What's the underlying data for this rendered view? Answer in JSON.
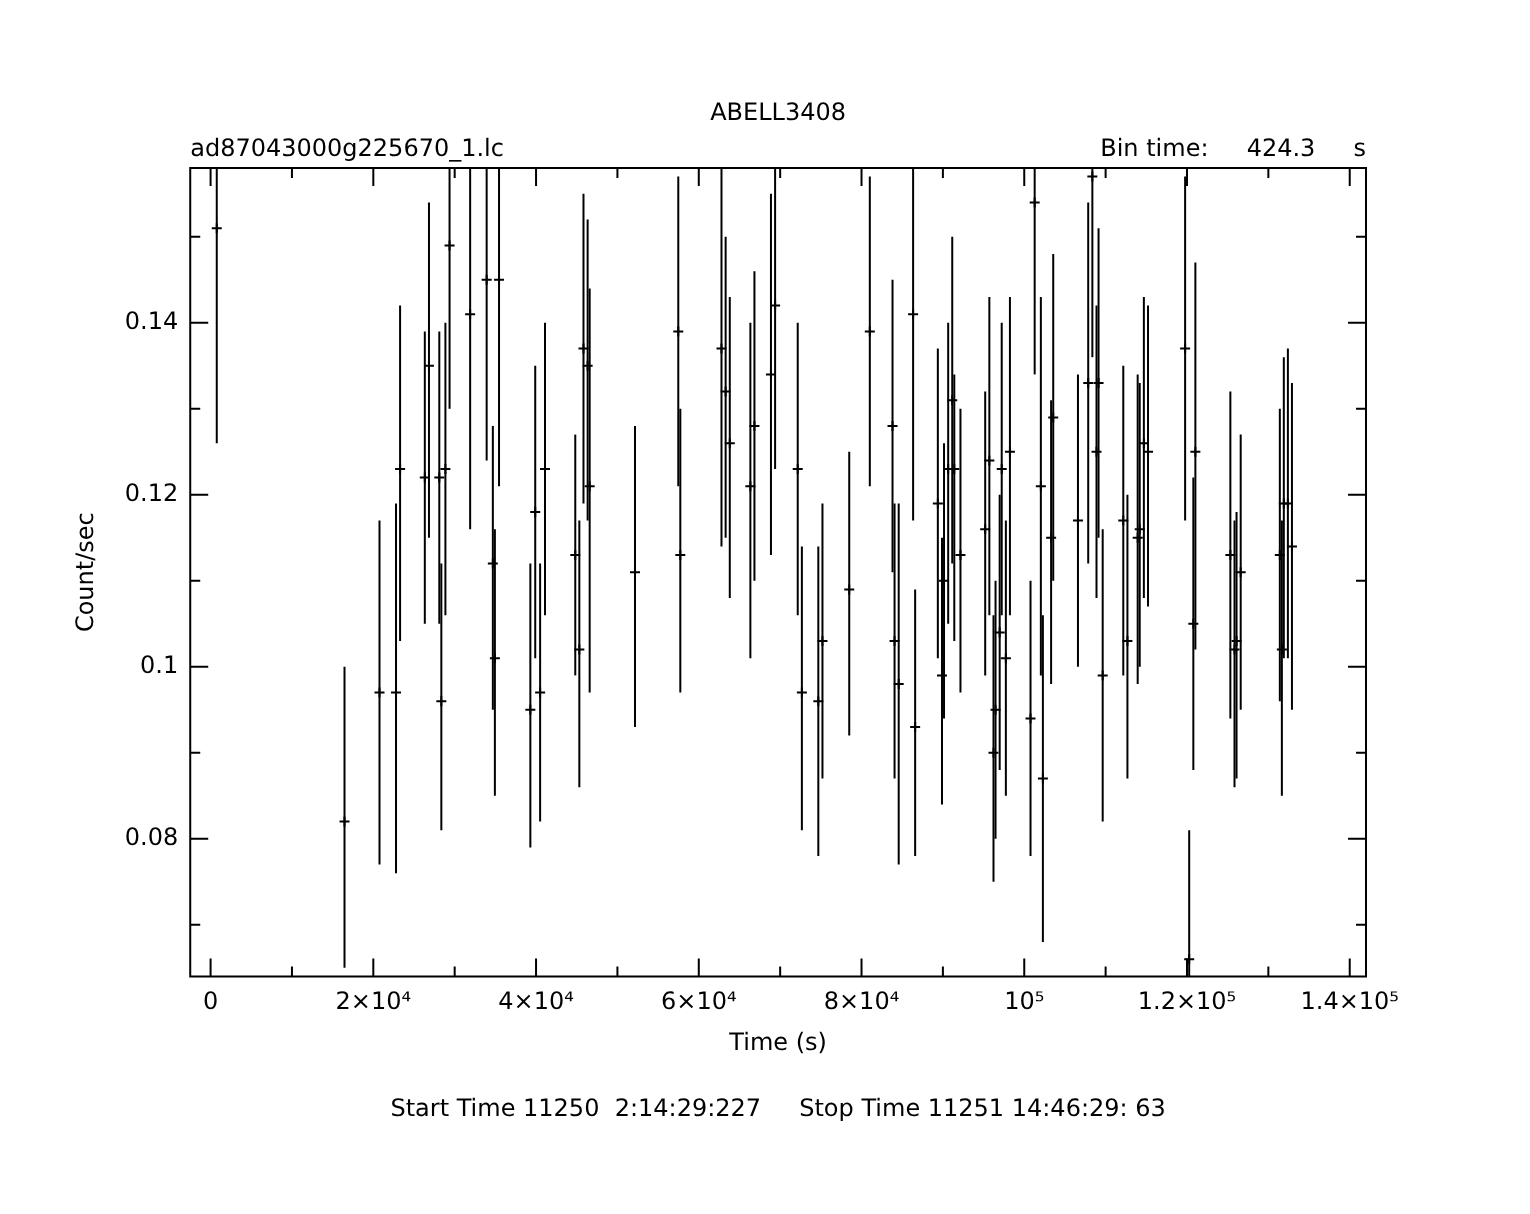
{
  "chart_data": {
    "type": "scatter",
    "title": "ABELL3408",
    "subtitle": "ad87043000g225670_1.lc",
    "xlabel": "Time (s)",
    "ylabel": "Count/sec",
    "annotations": [
      "Bin time:     424.3     s",
      "Start Time 11250  2:14:29:227     Stop Time 11251 14:46:29: 63"
    ],
    "xlim": [
      -2500,
      142000
    ],
    "ylim": [
      0.064,
      0.158
    ],
    "xticks": [
      {
        "value": 0,
        "label": "0"
      },
      {
        "value": 10000,
        "label": null
      },
      {
        "value": 20000,
        "label": "2×10⁴"
      },
      {
        "value": 30000,
        "label": null
      },
      {
        "value": 40000,
        "label": "4×10⁴"
      },
      {
        "value": 50000,
        "label": null
      },
      {
        "value": 60000,
        "label": "6×10⁴"
      },
      {
        "value": 70000,
        "label": null
      },
      {
        "value": 80000,
        "label": "8×10⁴"
      },
      {
        "value": 90000,
        "label": null
      },
      {
        "value": 100000,
        "label": "10⁵"
      },
      {
        "value": 110000,
        "label": null
      },
      {
        "value": 120000,
        "label": "1.2×10⁵"
      },
      {
        "value": 130000,
        "label": null
      },
      {
        "value": 140000,
        "label": "1.4×10⁵"
      }
    ],
    "yticks": [
      {
        "value": 0.07,
        "label": null
      },
      0.08,
      {
        "value": 0.09,
        "label": null
      },
      {
        "value": 0.1,
        "label": "0.1"
      },
      {
        "value": 0.11,
        "label": null
      },
      0.12,
      {
        "value": 0.13,
        "label": null
      },
      0.14,
      {
        "value": 0.15,
        "label": null
      }
    ],
    "grid": false,
    "legend": false,
    "marker": "cross",
    "series": [
      {
        "color": "#000000",
        "x": [
          760,
          16460,
          20760,
          22790,
          23290,
          26330,
          26840,
          28110,
          28360,
          28860,
          29370,
          31900,
          33930,
          34690,
          34940,
          35450,
          39300,
          39900,
          40500,
          41100,
          44820,
          45320,
          45830,
          46340,
          46590,
          52160,
          57480,
          57730,
          62790,
          63300,
          63810,
          66340,
          66840,
          68870,
          69380,
          72160,
          72670,
          74690,
          75200,
          78490,
          81020,
          83810,
          84060,
          84570,
          86340,
          86590,
          89380,
          89890,
          90140,
          90650,
          91150,
          91400,
          92160,
          95200,
          95710,
          96220,
          96470,
          96980,
          97230,
          97740,
          98240,
          100770,
          101280,
          102040,
          102290,
          103300,
          103560,
          106600,
          107860,
          108370,
          108880,
          109130,
          109640,
          112170,
          112680,
          113940,
          114190,
          114700,
          115210,
          119770,
          120270,
          120780,
          121030,
          125330,
          125840,
          126090,
          126600,
          131410,
          131660,
          131900,
          132400,
          132900
        ],
        "values": [
          0.151,
          0.082,
          0.097,
          0.097,
          0.123,
          0.122,
          0.135,
          0.122,
          0.096,
          0.123,
          0.149,
          0.141,
          0.145,
          0.112,
          0.101,
          0.145,
          0.095,
          0.118,
          0.097,
          0.123,
          0.113,
          0.102,
          0.137,
          0.135,
          0.121,
          0.111,
          0.139,
          0.113,
          0.137,
          0.132,
          0.126,
          0.121,
          0.128,
          0.134,
          0.142,
          0.123,
          0.097,
          0.096,
          0.103,
          0.109,
          0.139,
          0.128,
          0.103,
          0.098,
          0.141,
          0.093,
          0.119,
          0.099,
          0.11,
          0.123,
          0.131,
          0.123,
          0.113,
          0.116,
          0.124,
          0.09,
          0.095,
          0.104,
          0.123,
          0.101,
          0.125,
          0.094,
          0.154,
          0.121,
          0.087,
          0.115,
          0.129,
          0.117,
          0.133,
          0.157,
          0.125,
          0.133,
          0.099,
          0.117,
          0.103,
          0.115,
          0.116,
          0.126,
          0.125,
          0.137,
          0.066,
          0.105,
          0.125,
          0.113,
          0.102,
          0.103,
          0.111,
          0.113,
          0.102,
          0.119,
          0.119,
          0.114
        ],
        "errors": [
          [
            0.126,
            0.158
          ],
          [
            0.065,
            0.1
          ],
          [
            0.077,
            0.117
          ],
          [
            0.076,
            0.119
          ],
          [
            0.103,
            0.142
          ],
          [
            0.105,
            0.139
          ],
          [
            0.115,
            0.154
          ],
          [
            0.105,
            0.139
          ],
          [
            0.081,
            0.112
          ],
          [
            0.106,
            0.14
          ],
          [
            0.13,
            0.158
          ],
          [
            0.116,
            0.158
          ],
          [
            0.124,
            0.158
          ],
          [
            0.095,
            0.128
          ],
          [
            0.085,
            0.116
          ],
          [
            0.121,
            0.158
          ],
          [
            0.079,
            0.112
          ],
          [
            0.101,
            0.135
          ],
          [
            0.082,
            0.112
          ],
          [
            0.106,
            0.14
          ],
          [
            0.099,
            0.127
          ],
          [
            0.086,
            0.117
          ],
          [
            0.119,
            0.155
          ],
          [
            0.117,
            0.152
          ],
          [
            0.097,
            0.144
          ],
          [
            0.093,
            0.128
          ],
          [
            0.121,
            0.157
          ],
          [
            0.097,
            0.13
          ],
          [
            0.114,
            0.158
          ],
          [
            0.115,
            0.15
          ],
          [
            0.108,
            0.143
          ],
          [
            0.101,
            0.14
          ],
          [
            0.11,
            0.146
          ],
          [
            0.113,
            0.155
          ],
          [
            0.123,
            0.158
          ],
          [
            0.106,
            0.14
          ],
          [
            0.081,
            0.114
          ],
          [
            0.078,
            0.114
          ],
          [
            0.087,
            0.119
          ],
          [
            0.092,
            0.125
          ],
          [
            0.121,
            0.157
          ],
          [
            0.111,
            0.145
          ],
          [
            0.087,
            0.119
          ],
          [
            0.077,
            0.119
          ],
          [
            0.117,
            0.158
          ],
          [
            0.078,
            0.109
          ],
          [
            0.101,
            0.137
          ],
          [
            0.084,
            0.115
          ],
          [
            0.094,
            0.126
          ],
          [
            0.105,
            0.14
          ],
          [
            0.112,
            0.15
          ],
          [
            0.103,
            0.134
          ],
          [
            0.097,
            0.13
          ],
          [
            0.099,
            0.132
          ],
          [
            0.106,
            0.143
          ],
          [
            0.075,
            0.106
          ],
          [
            0.08,
            0.11
          ],
          [
            0.088,
            0.12
          ],
          [
            0.106,
            0.14
          ],
          [
            0.085,
            0.117
          ],
          [
            0.106,
            0.143
          ],
          [
            0.078,
            0.11
          ],
          [
            0.134,
            0.158
          ],
          [
            0.099,
            0.143
          ],
          [
            0.068,
            0.106
          ],
          [
            0.098,
            0.131
          ],
          [
            0.11,
            0.148
          ],
          [
            0.1,
            0.134
          ],
          [
            0.112,
            0.154
          ],
          [
            0.136,
            0.158
          ],
          [
            0.108,
            0.142
          ],
          [
            0.115,
            0.151
          ],
          [
            0.082,
            0.116
          ],
          [
            0.099,
            0.135
          ],
          [
            0.087,
            0.12
          ],
          [
            0.098,
            0.134
          ],
          [
            0.1,
            0.133
          ],
          [
            0.108,
            0.143
          ],
          [
            0.107,
            0.142
          ],
          [
            0.117,
            0.157
          ],
          [
            0.064,
            0.081
          ],
          [
            0.088,
            0.122
          ],
          [
            0.102,
            0.147
          ],
          [
            0.094,
            0.132
          ],
          [
            0.086,
            0.117
          ],
          [
            0.087,
            0.118
          ],
          [
            0.095,
            0.127
          ],
          [
            0.096,
            0.13
          ],
          [
            0.085,
            0.117
          ],
          [
            0.101,
            0.136
          ],
          [
            0.101,
            0.137
          ],
          [
            0.095,
            0.133
          ]
        ]
      }
    ]
  }
}
